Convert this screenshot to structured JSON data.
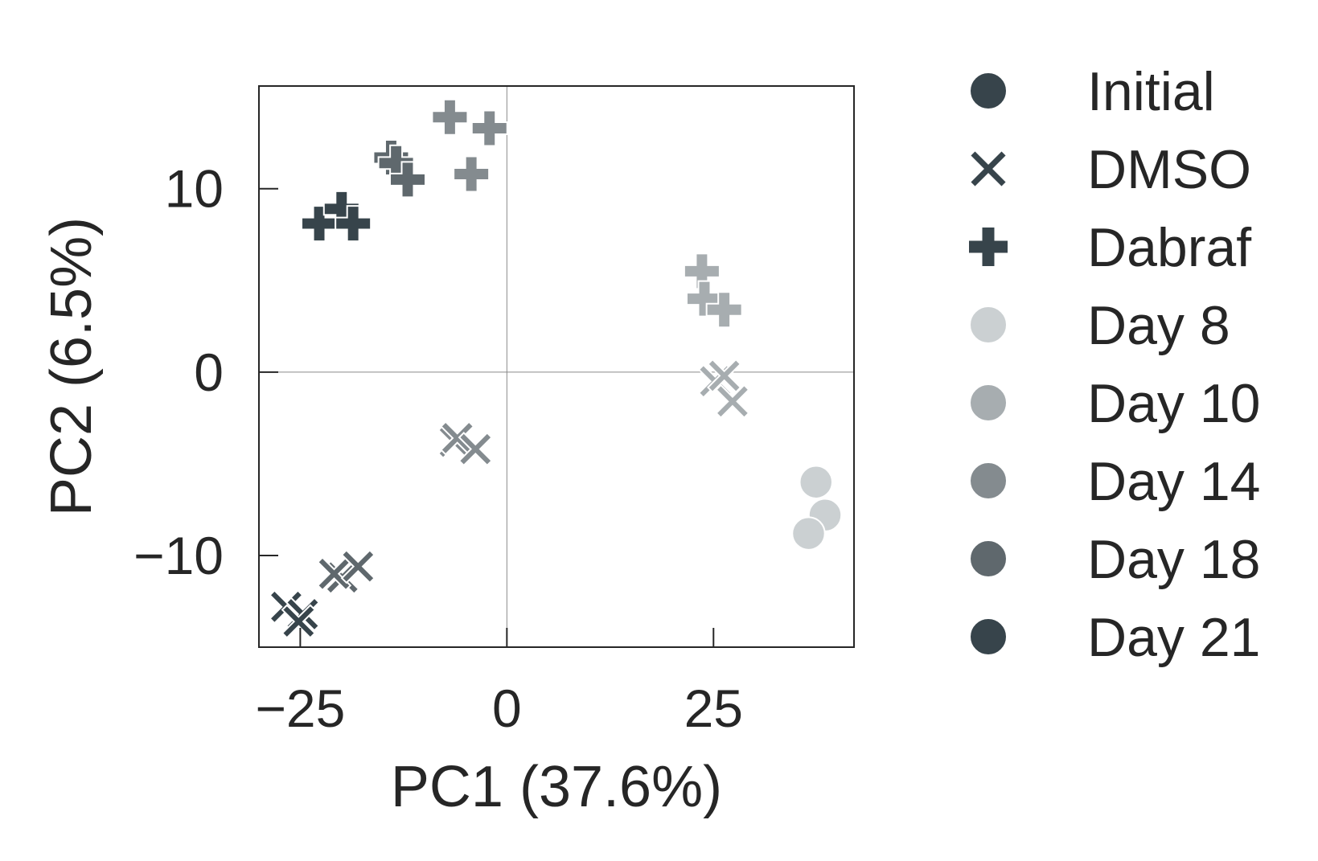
{
  "chart_data": {
    "type": "scatter",
    "title": "",
    "xlabel": "PC1 (37.6%)",
    "ylabel": "PC2 (6.5%)",
    "xlim": [
      -30,
      42
    ],
    "ylim": [
      -15,
      15.6
    ],
    "xticks": [
      -25,
      0,
      25
    ],
    "xtick_labels": [
      "−25",
      "0",
      "25"
    ],
    "yticks": [
      -10,
      0,
      10
    ],
    "ytick_labels": [
      "−10",
      "0",
      "10"
    ],
    "zero_lines": true,
    "legend_position": "right",
    "legend": {
      "markers": [
        {
          "label": "Initial",
          "marker": "circle",
          "color": "#37444b"
        },
        {
          "label": "DMSO",
          "marker": "x",
          "color": "#37444b"
        },
        {
          "label": "Dabraf",
          "marker": "plus",
          "color": "#37444b"
        }
      ],
      "days": [
        {
          "label": "Day 8",
          "color": "#cbd0d2"
        },
        {
          "label": "Day 10",
          "color": "#a7adb0"
        },
        {
          "label": "Day 14",
          "color": "#848b8f"
        },
        {
          "label": "Day 18",
          "color": "#5f686d"
        },
        {
          "label": "Day 21",
          "color": "#37444b"
        }
      ]
    },
    "series": [
      {
        "name": "Initial",
        "marker": "circle",
        "color": "#cbd0d2",
        "points": [
          [
            37.4,
            -6.0
          ],
          [
            38.5,
            -7.8
          ],
          [
            36.5,
            -8.8
          ]
        ]
      },
      {
        "name": "DMSO Day 10",
        "marker": "x",
        "color": "#a7adb0",
        "points": [
          [
            25.2,
            -0.5
          ],
          [
            26.3,
            -0.2
          ],
          [
            27.3,
            -1.6
          ]
        ]
      },
      {
        "name": "Dabraf Day 10",
        "marker": "plus",
        "color": "#a7adb0",
        "points": [
          [
            23.6,
            5.5
          ],
          [
            23.9,
            4.0
          ],
          [
            26.3,
            3.4
          ]
        ]
      },
      {
        "name": "DMSO Day 14",
        "marker": "x",
        "color": "#848b8f",
        "points": [
          [
            -6.3,
            -3.8
          ],
          [
            -6.0,
            -3.6
          ],
          [
            -3.8,
            -4.2
          ]
        ]
      },
      {
        "name": "Dabraf Day 14",
        "marker": "plus",
        "color": "#848b8f",
        "points": [
          [
            -6.9,
            13.9
          ],
          [
            -2.1,
            13.3
          ],
          [
            -4.3,
            10.8
          ]
        ]
      },
      {
        "name": "DMSO Day 18",
        "marker": "x",
        "color": "#5f686d",
        "points": [
          [
            -19.9,
            -11.2
          ],
          [
            -20.9,
            -11.0
          ],
          [
            -18.0,
            -10.6
          ]
        ]
      },
      {
        "name": "Dabraf Day 18",
        "marker": "plus",
        "color": "#5f686d",
        "points": [
          [
            -14.0,
            11.7
          ],
          [
            -13.4,
            11.4
          ],
          [
            -12.0,
            10.5
          ]
        ]
      },
      {
        "name": "DMSO Day 21",
        "marker": "x",
        "color": "#37444b",
        "points": [
          [
            -26.7,
            -12.8
          ],
          [
            -24.7,
            -13.2
          ],
          [
            -25.2,
            -13.6
          ]
        ]
      },
      {
        "name": "Dabraf Day 21",
        "marker": "plus",
        "color": "#37444b",
        "points": [
          [
            -22.7,
            8.1
          ],
          [
            -20.0,
            8.9
          ],
          [
            -18.6,
            8.1
          ]
        ]
      }
    ]
  }
}
